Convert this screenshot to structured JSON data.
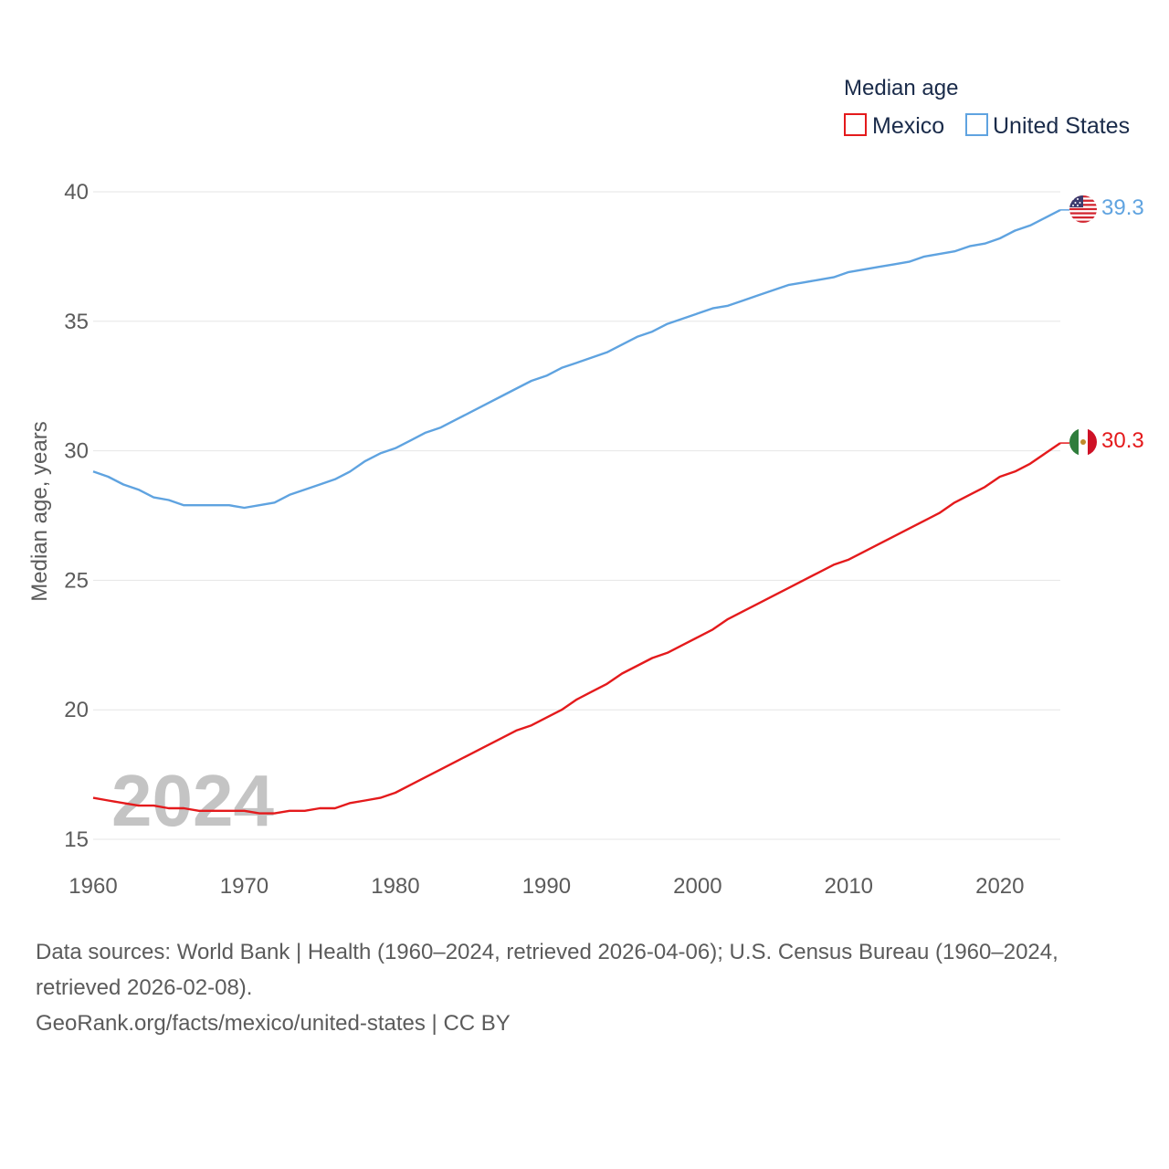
{
  "chart_data": {
    "type": "line",
    "legend_title": "Median age",
    "ylabel": "Median age, years",
    "xlabel": "",
    "xlim": [
      1960,
      2024
    ],
    "ylim": [
      15,
      40
    ],
    "xticks": [
      "1960",
      "1970",
      "1980",
      "1990",
      "2000",
      "2010",
      "2020"
    ],
    "yticks": [
      "15",
      "20",
      "25",
      "30",
      "35",
      "40"
    ],
    "year_label": "2024",
    "x": [
      1960,
      1961,
      1962,
      1963,
      1964,
      1965,
      1966,
      1967,
      1968,
      1969,
      1970,
      1971,
      1972,
      1973,
      1974,
      1975,
      1976,
      1977,
      1978,
      1979,
      1980,
      1981,
      1982,
      1983,
      1984,
      1985,
      1986,
      1987,
      1988,
      1989,
      1990,
      1991,
      1992,
      1993,
      1994,
      1995,
      1996,
      1997,
      1998,
      1999,
      2000,
      2001,
      2002,
      2003,
      2004,
      2005,
      2006,
      2007,
      2008,
      2009,
      2010,
      2011,
      2012,
      2013,
      2014,
      2015,
      2016,
      2017,
      2018,
      2019,
      2020,
      2021,
      2022,
      2023,
      2024
    ],
    "series": [
      {
        "name": "Mexico",
        "color": "#e41a1c",
        "end_label": "30.3",
        "flag": "mexico-flag",
        "values": [
          16.6,
          16.5,
          16.4,
          16.3,
          16.3,
          16.2,
          16.2,
          16.1,
          16.1,
          16.1,
          16.1,
          16.0,
          16.0,
          16.1,
          16.1,
          16.2,
          16.2,
          16.4,
          16.5,
          16.6,
          16.8,
          17.1,
          17.4,
          17.7,
          18.0,
          18.3,
          18.6,
          18.9,
          19.2,
          19.4,
          19.7,
          20.0,
          20.4,
          20.7,
          21.0,
          21.4,
          21.7,
          22.0,
          22.2,
          22.5,
          22.8,
          23.1,
          23.5,
          23.8,
          24.1,
          24.4,
          24.7,
          25.0,
          25.3,
          25.6,
          25.8,
          26.1,
          26.4,
          26.7,
          27.0,
          27.3,
          27.6,
          28.0,
          28.3,
          28.6,
          29.0,
          29.2,
          29.5,
          29.9,
          30.3
        ]
      },
      {
        "name": "United States",
        "color": "#5fa3e0",
        "end_label": "39.3",
        "flag": "united-states-flag",
        "values": [
          29.2,
          29.0,
          28.7,
          28.5,
          28.2,
          28.1,
          27.9,
          27.9,
          27.9,
          27.9,
          27.8,
          27.9,
          28.0,
          28.3,
          28.5,
          28.7,
          28.9,
          29.2,
          29.6,
          29.9,
          30.1,
          30.4,
          30.7,
          30.9,
          31.2,
          31.5,
          31.8,
          32.1,
          32.4,
          32.7,
          32.9,
          33.2,
          33.4,
          33.6,
          33.8,
          34.1,
          34.4,
          34.6,
          34.9,
          35.1,
          35.3,
          35.5,
          35.6,
          35.8,
          36.0,
          36.2,
          36.4,
          36.5,
          36.6,
          36.7,
          36.9,
          37.0,
          37.1,
          37.2,
          37.3,
          37.5,
          37.6,
          37.7,
          37.9,
          38.0,
          38.2,
          38.5,
          38.7,
          39.0,
          39.3
        ]
      }
    ]
  },
  "footer": {
    "line1": "Data sources: World Bank | Health (1960–2024, retrieved 2026-04-06); U.S. Census Bureau (1960–2024,",
    "line2": "retrieved 2026-02-08).",
    "line3": "GeoRank.org/facts/mexico/united-states | CC BY"
  }
}
